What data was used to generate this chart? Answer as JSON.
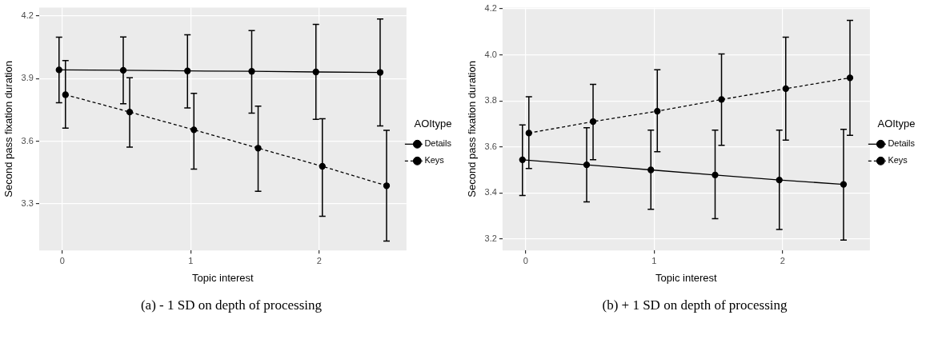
{
  "chart_data": [
    {
      "type": "line",
      "xlabel": "Topic interest",
      "ylabel": "Second pass fixation duration",
      "legend_title": "AOItype",
      "legend": "right",
      "grid": true,
      "marker": "circle",
      "xlim": [
        -0.18,
        2.68
      ],
      "xticks": [
        0,
        1,
        2
      ],
      "ylim": [
        3.077,
        4.24
      ],
      "yticks": [
        3.3,
        3.6,
        3.9,
        4.2
      ],
      "annotations": [
        "(a) - 1 SD on depth of processing"
      ],
      "series": [
        {
          "name": "Details",
          "color": "#000000",
          "line_style": "solid",
          "x": [
            -0.025,
            0.475,
            0.975,
            1.475,
            1.975,
            2.475
          ],
          "values": [
            3.942,
            3.94,
            3.937,
            3.935,
            3.932,
            3.93
          ],
          "errors": [
            [
              3.785,
              4.099
            ],
            [
              3.78,
              4.1
            ],
            [
              3.76,
              4.11
            ],
            [
              3.735,
              4.13
            ],
            [
              3.705,
              4.16
            ],
            [
              3.673,
              4.186
            ]
          ]
        },
        {
          "name": "Keys",
          "color": "#000000",
          "line_style": "dashed",
          "x": [
            0.025,
            0.525,
            1.025,
            1.525,
            2.025,
            2.525
          ],
          "values": [
            3.823,
            3.74,
            3.655,
            3.567,
            3.48,
            3.387
          ],
          "errors": [
            [
              3.663,
              3.987
            ],
            [
              3.572,
              3.904
            ],
            [
              3.467,
              3.83
            ],
            [
              3.36,
              3.768
            ],
            [
              3.241,
              3.708
            ],
            [
              3.122,
              3.652
            ]
          ]
        }
      ]
    },
    {
      "type": "line",
      "xlabel": "Topic interest",
      "ylabel": "Second pass fixation duration",
      "legend_title": "AOItype",
      "legend": "right",
      "grid": true,
      "marker": "circle",
      "xlim": [
        -0.18,
        2.68
      ],
      "xticks": [
        0,
        1,
        2
      ],
      "ylim": [
        3.15,
        4.205
      ],
      "yticks": [
        3.2,
        3.4,
        3.6,
        3.8,
        {
          "value": 4,
          "label": "4.0"
        },
        4.2
      ],
      "annotations": [
        "(b) + 1 SD on depth of processing"
      ],
      "series": [
        {
          "name": "Details",
          "color": "#000000",
          "line_style": "solid",
          "x": [
            -0.025,
            0.475,
            0.975,
            1.475,
            1.975,
            2.475
          ],
          "values": [
            3.544,
            3.522,
            3.5,
            3.478,
            3.456,
            3.437
          ],
          "errors": [
            [
              3.389,
              3.695
            ],
            [
              3.361,
              3.683
            ],
            [
              3.329,
              3.673
            ],
            [
              3.288,
              3.673
            ],
            [
              3.241,
              3.673
            ],
            [
              3.195,
              3.676
            ]
          ]
        },
        {
          "name": "Keys",
          "color": "#000000",
          "line_style": "dashed",
          "x": [
            0.025,
            0.525,
            1.025,
            1.525,
            2.025,
            2.525
          ],
          "values": [
            3.66,
            3.71,
            3.755,
            3.806,
            3.853,
            3.9
          ],
          "errors": [
            [
              3.506,
              3.818
            ],
            [
              3.544,
              3.872
            ],
            [
              3.579,
              3.935
            ],
            [
              3.607,
              4.004
            ],
            [
              3.629,
              4.077
            ],
            [
              3.65,
              4.15
            ]
          ]
        }
      ]
    }
  ]
}
